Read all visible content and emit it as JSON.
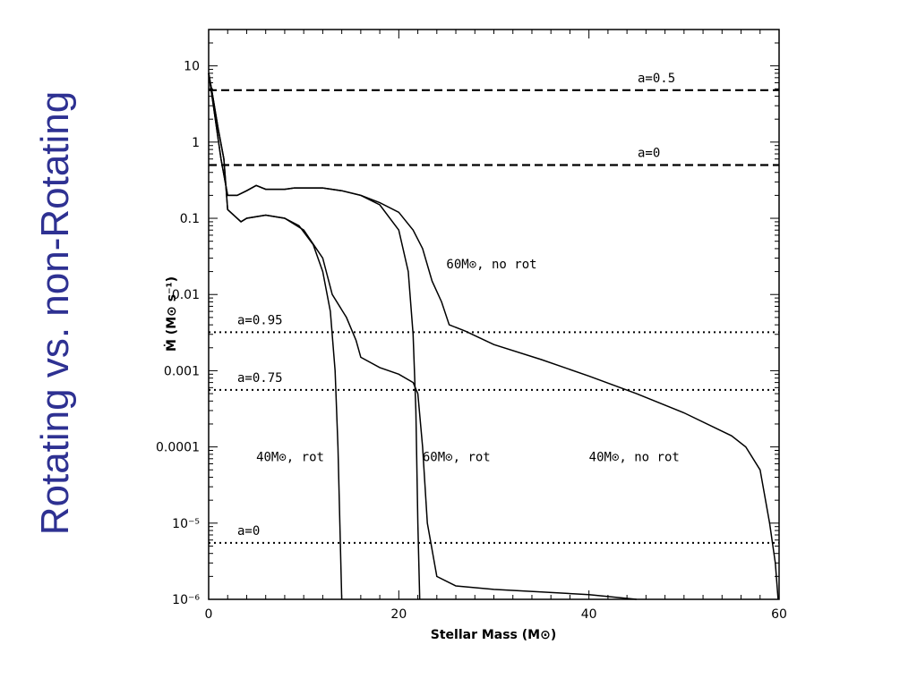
{
  "slide_title": "Rotating vs. non-Rotating",
  "chart_data": {
    "type": "line",
    "xlabel": "Stellar Mass (M⊙)",
    "ylabel": "Ṁ (M⊙ s⁻¹)",
    "xlim": [
      0,
      60
    ],
    "ylim": [
      1e-06,
      30
    ],
    "yscale": "log",
    "x_ticks": [
      0,
      20,
      40,
      60
    ],
    "y_ticks": [
      {
        "value": 10,
        "label": "10"
      },
      {
        "value": 1,
        "label": "1"
      },
      {
        "value": 0.1,
        "label": "0.1"
      },
      {
        "value": 0.01,
        "label": "0.01"
      },
      {
        "value": 0.001,
        "label": "0.001"
      },
      {
        "value": 0.0001,
        "label": "0.0001"
      },
      {
        "value": 1e-05,
        "label": "10⁻⁵"
      },
      {
        "value": 1e-06,
        "label": "10⁻⁶"
      }
    ],
    "grid": false,
    "reference_lines": [
      {
        "label": "a=0.5",
        "y": 4.8,
        "style": "dashed"
      },
      {
        "label": "a=0",
        "y": 0.5,
        "style": "dashed"
      },
      {
        "label": "a=0.95",
        "y": 0.0032,
        "style": "dotted"
      },
      {
        "label": "a=0.75",
        "y": 0.00056,
        "style": "dotted"
      },
      {
        "label": "a=0",
        "y": 5.5e-06,
        "style": "dotted"
      }
    ],
    "series": [
      {
        "name": "40M⊙, rot",
        "x": [
          0,
          0.3,
          1,
          1.6,
          2.0,
          3.4,
          4,
          6,
          8,
          9.5,
          11,
          12,
          12.8,
          13.3,
          13.6,
          13.8,
          14.0
        ],
        "y": [
          8,
          5,
          1.5,
          0.6,
          0.13,
          0.09,
          0.1,
          0.11,
          0.1,
          0.08,
          0.045,
          0.02,
          0.006,
          0.001,
          0.0001,
          1e-05,
          1e-06
        ]
      },
      {
        "name": "60M⊙, rot",
        "x": [
          0,
          0.3,
          1,
          1.6,
          2.0,
          3.4,
          4,
          6,
          8,
          10,
          12,
          13,
          14.5,
          15.5,
          16,
          18,
          20,
          21.5,
          22,
          22.5,
          23,
          24,
          26,
          30,
          35,
          40,
          45
        ],
        "y": [
          8,
          5,
          1.5,
          0.6,
          0.13,
          0.09,
          0.1,
          0.11,
          0.1,
          0.07,
          0.03,
          0.01,
          0.005,
          0.0025,
          0.0015,
          0.0011,
          0.0009,
          0.0007,
          0.0005,
          0.0001,
          1e-05,
          2e-06,
          1.5e-06,
          1.35e-06,
          1.25e-06,
          1.15e-06,
          1e-06
        ]
      },
      {
        "name": "60M⊙, no rot",
        "x": [
          0,
          0.5,
          1.3,
          2,
          3,
          4,
          5,
          6,
          7,
          8,
          9,
          10,
          12,
          14,
          16,
          18,
          20,
          21,
          21.5,
          21.8,
          22.0,
          22.2
        ],
        "y": [
          8,
          3,
          0.6,
          0.2,
          0.2,
          0.23,
          0.27,
          0.24,
          0.24,
          0.24,
          0.25,
          0.25,
          0.25,
          0.23,
          0.2,
          0.15,
          0.07,
          0.02,
          0.003,
          0.0003,
          1e-05,
          1e-06
        ]
      },
      {
        "name": "40M⊙, no rot",
        "x": [
          0,
          0.5,
          1.3,
          2,
          3,
          4,
          5,
          6,
          7,
          8,
          9,
          10,
          12,
          14,
          16,
          18,
          20,
          21.5,
          22.5,
          23.5,
          24.5,
          25.3,
          27,
          30,
          35,
          40,
          45,
          50,
          55,
          56.5,
          58,
          59,
          59.6,
          59.9
        ],
        "y": [
          8,
          3,
          0.6,
          0.2,
          0.2,
          0.23,
          0.27,
          0.24,
          0.24,
          0.24,
          0.25,
          0.25,
          0.25,
          0.23,
          0.2,
          0.16,
          0.12,
          0.07,
          0.04,
          0.015,
          0.008,
          0.004,
          0.0033,
          0.0022,
          0.0014,
          0.00085,
          0.0005,
          0.00028,
          0.00014,
          0.0001,
          5e-05,
          1e-05,
          3e-06,
          1e-06
        ]
      }
    ],
    "annotations": [
      {
        "text": "60M⊙, no rot",
        "x": 25,
        "y": 0.022
      },
      {
        "text": "40M⊙, rot",
        "x": 5,
        "y": 6.5e-05
      },
      {
        "text": "60M⊙, rot",
        "x": 22.5,
        "y": 6.5e-05
      },
      {
        "text": "40M⊙, no rot",
        "x": 40,
        "y": 6.5e-05
      }
    ]
  }
}
